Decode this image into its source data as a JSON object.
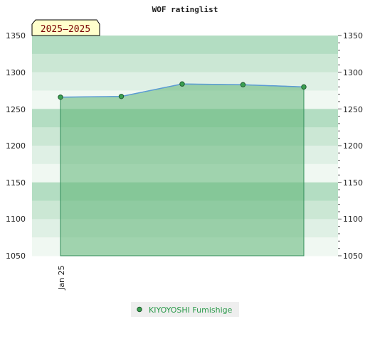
{
  "chart_data": {
    "type": "area",
    "title": "WOF ratinglist",
    "period_badge": "2025–2025",
    "x": [
      "Jan 25",
      "",
      "",
      "",
      ""
    ],
    "x_tick_labels": [
      "Jan 25"
    ],
    "series": [
      {
        "name": "KIYOYOSHI Fumishige",
        "values": [
          1266,
          1267,
          1284,
          1283,
          1280
        ]
      }
    ],
    "ylim": [
      1050,
      1350
    ],
    "y_ticks": [
      1050,
      1100,
      1150,
      1200,
      1250,
      1300,
      1350
    ],
    "y_tick_labels_left": [
      "1350",
      "1300",
      "1250",
      "1200",
      "1150",
      "1100",
      "1050"
    ],
    "y_tick_labels_right": [
      "1350",
      "1300",
      "1250",
      "1200",
      "1150",
      "1100",
      "1050"
    ],
    "legend_position": "bottom-center",
    "colors": {
      "fill": "#5fb477",
      "line": "#5b9bd5",
      "edge": "#2e8b57",
      "marker": "#3aa050",
      "legend_text": "#2a9a4a",
      "badge_bg": "#ffffcc"
    }
  }
}
